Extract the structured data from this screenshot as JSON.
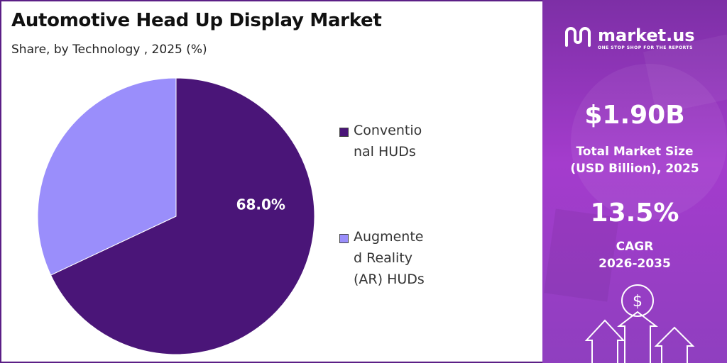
{
  "title": "Automotive Head Up Display Market",
  "subtitle": "Share, by Technology , 2025 (%)",
  "chart_data": {
    "type": "pie",
    "title": "Automotive Head Up Display Market",
    "subtitle": "Share, by Technology , 2025 (%)",
    "categories": [
      "Conventional HUDs",
      "Augmented Reality (AR) HUDs"
    ],
    "values": [
      68.0,
      32.0
    ],
    "colors": [
      "#4a1578",
      "#9a8efb"
    ],
    "data_labels": [
      "68.0%",
      ""
    ],
    "legend_position": "right"
  },
  "legend": [
    {
      "label": "Conventional HUDs",
      "color": "#4a1578"
    },
    {
      "label": "Augmented Reality (AR) HUDs",
      "color": "#9a8efb"
    }
  ],
  "sidebar": {
    "brand": "market.us",
    "tagline": "ONE STOP SHOP FOR THE REPORTS",
    "market_size": "$1.90B",
    "market_size_label_1": "Total Market Size",
    "market_size_label_2": "(USD Billion), 2025",
    "cagr": "13.5%",
    "cagr_label_1": "CAGR",
    "cagr_label_2": "2026-2035",
    "icon": "dollar-arrows-icon",
    "accent": "#9b3fcc"
  }
}
